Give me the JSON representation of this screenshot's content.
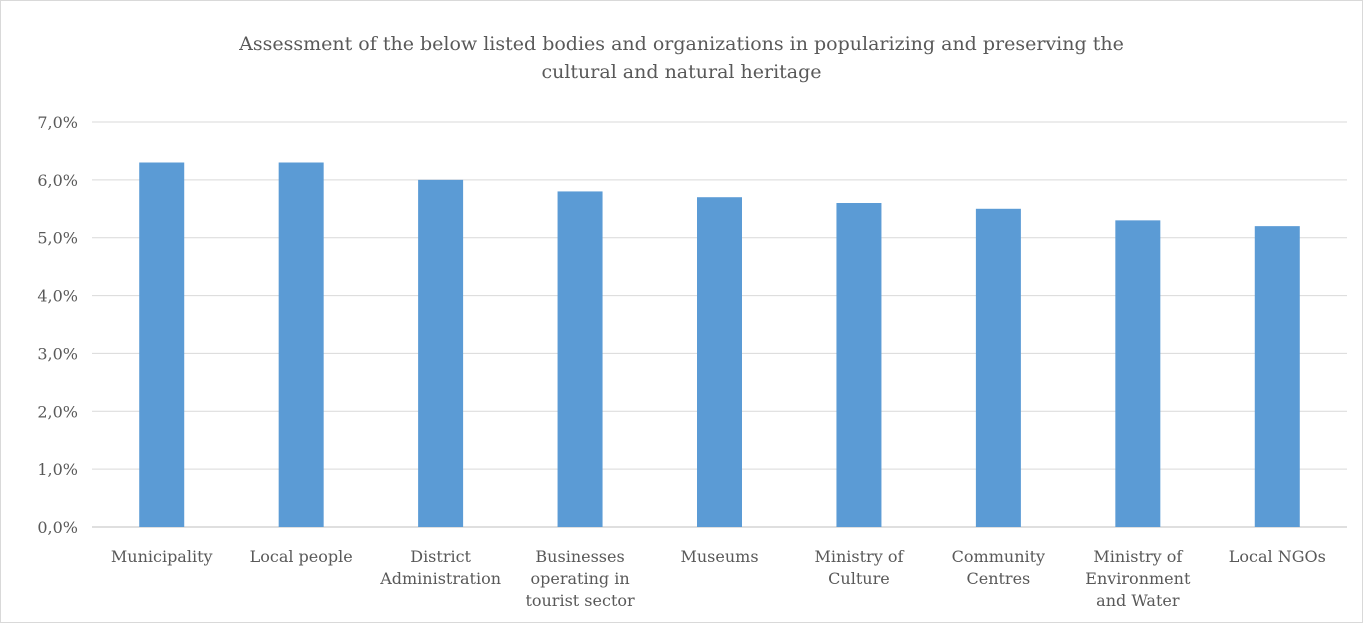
{
  "chart_data": {
    "type": "bar",
    "title_lines": [
      "Assessment of the below listed  bodies and organizations in popularizing and preserving the",
      "cultural and natural heritage"
    ],
    "categories": [
      [
        "Municipality"
      ],
      [
        "Local people"
      ],
      [
        "District",
        "Administration"
      ],
      [
        "Businesses",
        "operating in",
        "tourist sector"
      ],
      [
        "Museums"
      ],
      [
        "Ministry of",
        "Culture"
      ],
      [
        "Community",
        "Centres"
      ],
      [
        "Ministry of",
        "Environment",
        "and Water"
      ],
      [
        "Local NGOs"
      ]
    ],
    "values": [
      6.3,
      6.3,
      6.0,
      5.8,
      5.7,
      5.6,
      5.5,
      5.3,
      5.2
    ],
    "ylim": [
      0,
      7
    ],
    "yticks": [
      "0,0%",
      "1,0%",
      "2,0%",
      "3,0%",
      "4,0%",
      "5,0%",
      "6,0%",
      "7,0%"
    ],
    "grid": true,
    "bar_color": "#5b9bd5",
    "grid_color": "#d9d9d9"
  }
}
